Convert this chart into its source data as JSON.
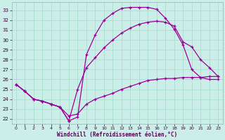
{
  "xlabel": "Windchill (Refroidissement éolien,°C)",
  "bg_color": "#cceee8",
  "grid_color": "#aaddcc",
  "line_color": "#990099",
  "xlim": [
    -0.5,
    23.5
  ],
  "ylim": [
    21.5,
    33.8
  ],
  "xticks": [
    0,
    1,
    2,
    3,
    4,
    5,
    6,
    7,
    8,
    9,
    10,
    11,
    12,
    13,
    14,
    15,
    16,
    17,
    18,
    19,
    20,
    21,
    22,
    23
  ],
  "yticks": [
    22,
    23,
    24,
    25,
    26,
    27,
    28,
    29,
    30,
    31,
    32,
    33
  ],
  "line1_x": [
    0,
    1,
    2,
    3,
    4,
    5,
    6,
    7,
    8,
    9,
    10,
    11,
    12,
    13,
    14,
    15,
    16,
    17,
    18,
    19,
    20,
    21,
    22,
    23
  ],
  "line1_y": [
    25.5,
    24.8,
    24.0,
    23.8,
    23.5,
    23.2,
    21.8,
    22.2,
    28.5,
    30.5,
    32.0,
    32.7,
    33.2,
    33.3,
    33.3,
    33.3,
    33.1,
    32.2,
    31.1,
    29.5,
    27.0,
    26.2,
    26.0,
    26.0
  ],
  "line2_x": [
    0,
    1,
    2,
    3,
    4,
    5,
    6,
    7,
    8,
    9,
    10,
    11,
    12,
    13,
    14,
    15,
    16,
    17,
    18,
    19,
    20,
    21,
    22,
    23
  ],
  "line2_y": [
    25.5,
    24.8,
    24.0,
    23.8,
    23.5,
    23.2,
    21.8,
    25.0,
    27.2,
    28.2,
    29.2,
    30.0,
    30.7,
    31.2,
    31.6,
    31.8,
    31.9,
    31.8,
    31.4,
    29.8,
    29.3,
    28.0,
    27.2,
    26.3
  ],
  "line3_x": [
    0,
    1,
    2,
    3,
    4,
    5,
    6,
    7,
    8,
    9,
    10,
    11,
    12,
    13,
    14,
    15,
    16,
    17,
    18,
    19,
    20,
    21,
    22,
    23
  ],
  "line3_y": [
    25.5,
    24.8,
    24.0,
    23.8,
    23.5,
    23.2,
    22.3,
    22.5,
    23.5,
    24.0,
    24.3,
    24.6,
    25.0,
    25.3,
    25.6,
    25.9,
    26.0,
    26.1,
    26.1,
    26.2,
    26.2,
    26.2,
    26.3,
    26.3
  ]
}
